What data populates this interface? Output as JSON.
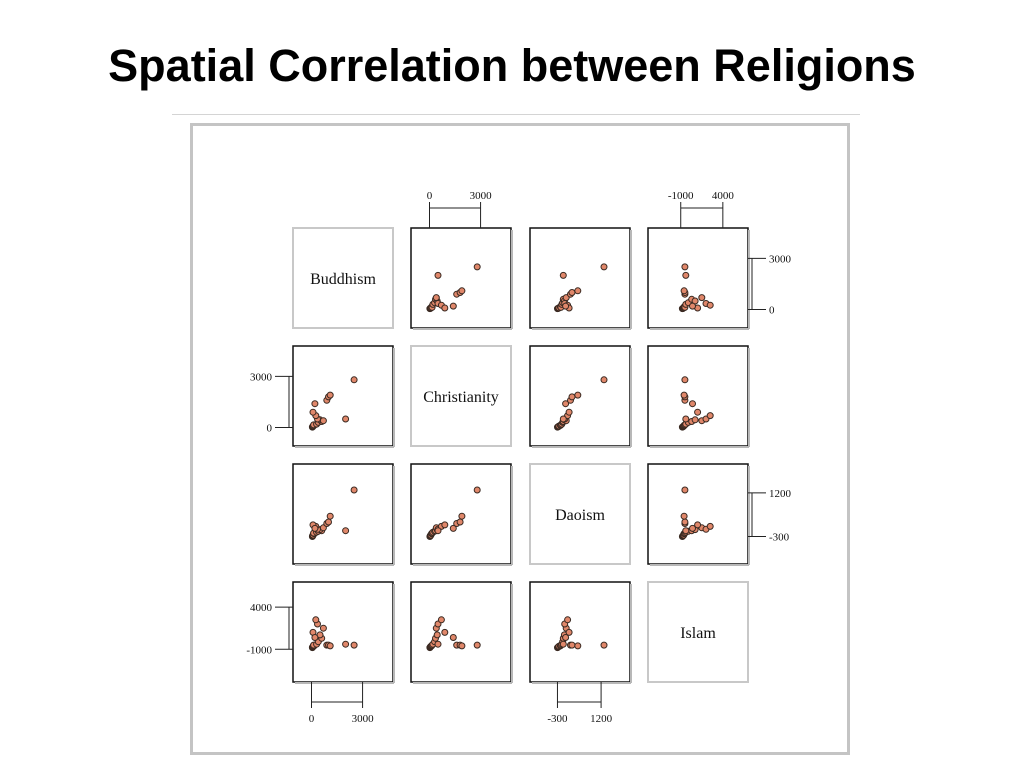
{
  "title": "Spatial Correlation between Religions",
  "chart_data": {
    "type": "scatter",
    "variables": [
      "Buddhism",
      "Christianity",
      "Daoism",
      "Islam"
    ],
    "colors": {
      "point_fill": "#e0876a",
      "point_stroke": "#3a2a22",
      "label_box_border": "#c8c8c8",
      "panel_border": "#111111"
    },
    "axes": {
      "Buddhism": {
        "ticks": [
          0,
          3000
        ],
        "tick_labels": [
          "0",
          "3000"
        ],
        "range": [
          -500,
          4200
        ]
      },
      "Christianity": {
        "ticks": [
          0,
          3000
        ],
        "tick_labels": [
          "0",
          "3000"
        ],
        "range": [
          -500,
          4200
        ]
      },
      "Daoism": {
        "ticks": [
          -300,
          1200
        ],
        "tick_labels": [
          "-300",
          "1200"
        ],
        "range": [
          -900,
          1850
        ]
      },
      "Islam": {
        "ticks": [
          -1000,
          4000
        ],
        "tick_labels": [
          "-1000",
          "4000"
        ],
        "range": [
          -3700,
          5800
        ]
      }
    },
    "tick_labels_shown": {
      "top": [
        "Christianity",
        "Islam"
      ],
      "right": [
        "Buddhism",
        "Daoism"
      ],
      "left": [
        "Christianity",
        "Islam"
      ],
      "bottom": [
        "Buddhism",
        "Daoism"
      ]
    },
    "observations": {
      "Buddhism": [
        50,
        60,
        80,
        100,
        150,
        120,
        300,
        400,
        600,
        500,
        700,
        350,
        250,
        90,
        200,
        900,
        1000,
        1100,
        2000,
        2500
      ],
      "Christianity": [
        20,
        40,
        60,
        80,
        120,
        150,
        200,
        300,
        350,
        450,
        400,
        500,
        700,
        900,
        1400,
        1600,
        1800,
        1900,
        500,
        2800
      ],
      "Daoism": [
        -300,
        -280,
        -260,
        -250,
        -200,
        -180,
        -150,
        -120,
        -100,
        -60,
        0,
        -50,
        50,
        100,
        -20,
        150,
        200,
        400,
        -100,
        1300
      ],
      "Islam": [
        -800,
        -750,
        -700,
        -650,
        -600,
        -500,
        -400,
        -100,
        300,
        700,
        1500,
        2000,
        2500,
        1000,
        400,
        -500,
        -500,
        -600,
        -400,
        -500
      ]
    }
  }
}
